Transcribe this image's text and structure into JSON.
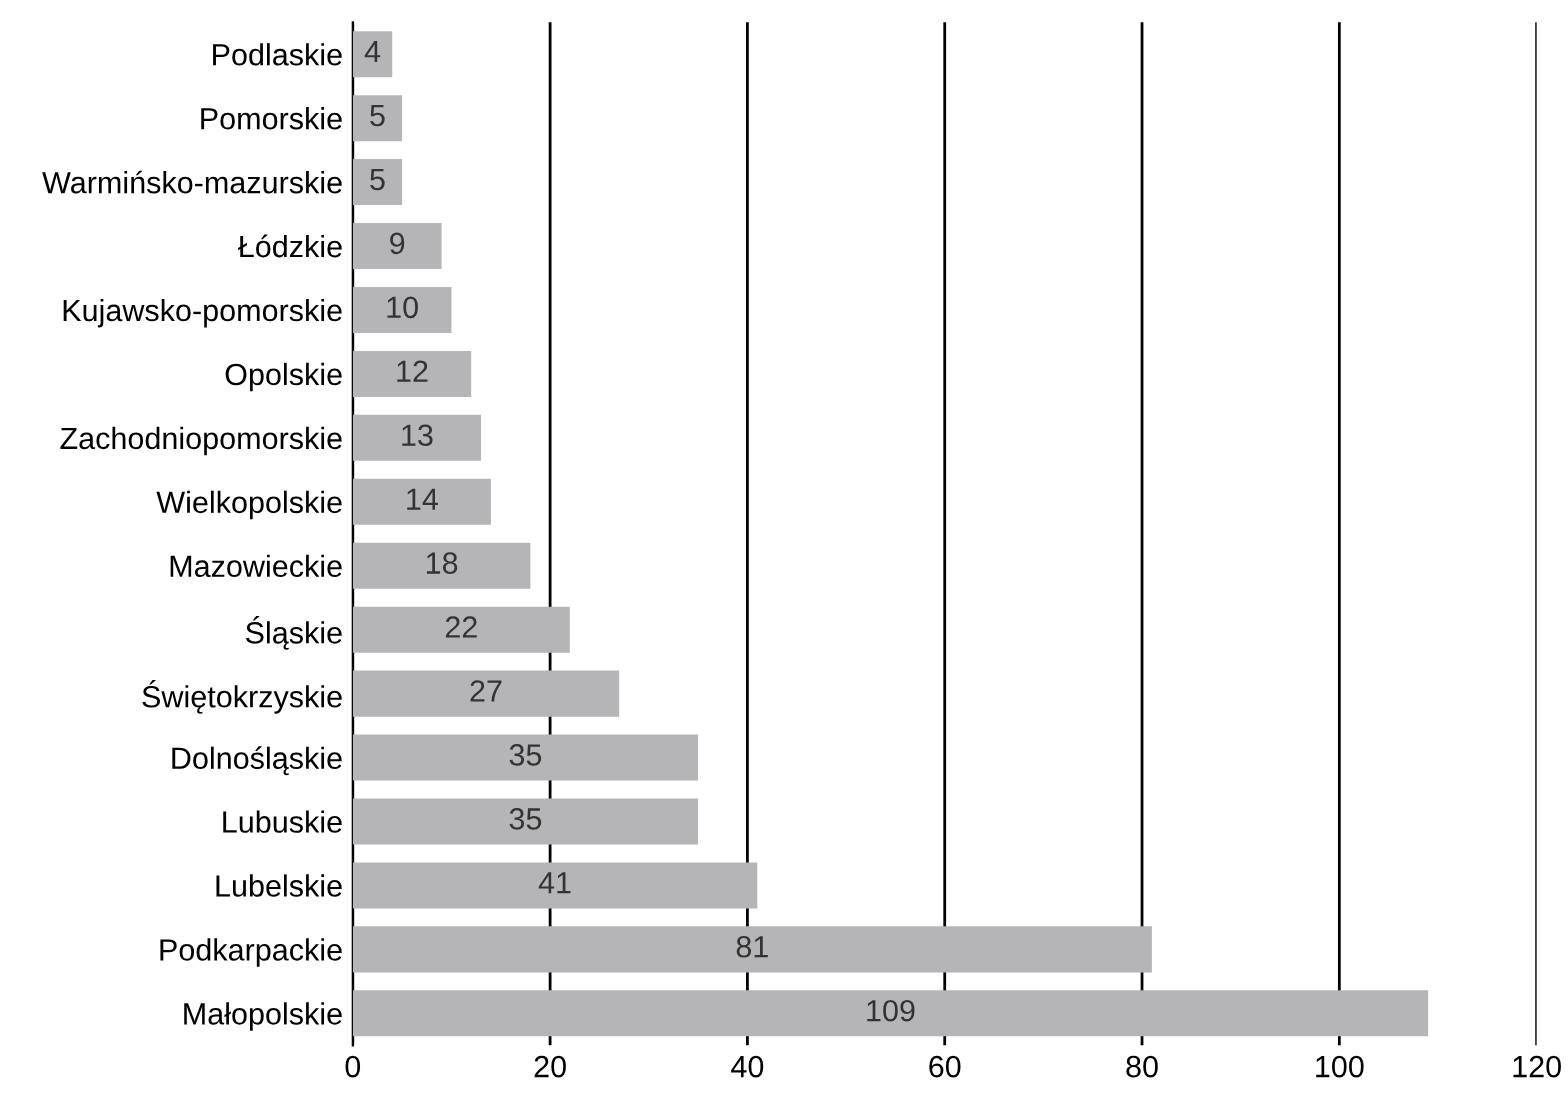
{
  "chart_data": {
    "type": "bar",
    "orientation": "horizontal",
    "categories": [
      "Podlaskie",
      "Pomorskie",
      "Warmińsko-mazurskie",
      "Łódzkie",
      "Kujawsko-pomorskie",
      "Opolskie",
      "Zachodniopomorskie",
      "Wielkopolskie",
      "Mazowieckie",
      "Śląskie",
      "Świętokrzyskie",
      "Dolnośląskie",
      "Lubuskie",
      "Lubelskie",
      "Podkarpackie",
      "Małopolskie"
    ],
    "values": [
      4,
      5,
      5,
      9,
      10,
      12,
      13,
      14,
      18,
      22,
      27,
      35,
      35,
      41,
      81,
      109
    ],
    "color": "#b5b5b7",
    "xlim": [
      0,
      120
    ],
    "xticks": [
      0,
      20,
      40,
      60,
      80,
      100,
      120
    ],
    "grid": "x",
    "data_labels": true,
    "legend": false
  }
}
